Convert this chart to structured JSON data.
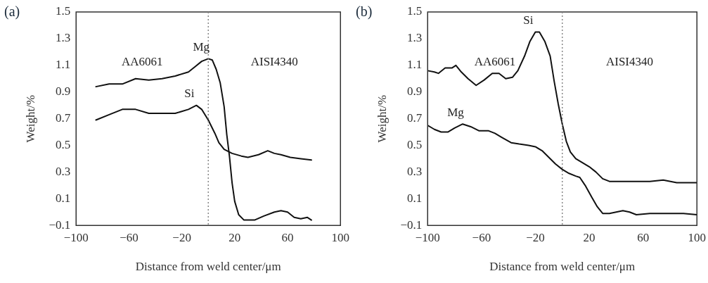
{
  "chart_data": [
    {
      "type": "line",
      "title": "(a)",
      "xlabel": "Distance from weld center/μm",
      "ylabel": "Weight/%",
      "xlim": [
        -100,
        100
      ],
      "xticks": [
        -100,
        -60,
        -20,
        20,
        60,
        100
      ],
      "ylim": [
        -0.1,
        1.5
      ],
      "yticks": [
        -0.1,
        0.1,
        0.3,
        0.5,
        0.7,
        0.9,
        1.1,
        1.3,
        1.5
      ],
      "marker": "none",
      "line_style": "solid",
      "series": [
        {
          "name": "Mg",
          "color": "#111111",
          "x": [
            -85,
            -75,
            -65,
            -55,
            -45,
            -35,
            -25,
            -15,
            -10,
            -5,
            0,
            3,
            6,
            9,
            12,
            14,
            16,
            18,
            20,
            23,
            27,
            35,
            42,
            50,
            55,
            60,
            65,
            70,
            75,
            78
          ],
          "values": [
            0.94,
            0.96,
            0.96,
            1.0,
            0.99,
            1.0,
            1.02,
            1.05,
            1.09,
            1.13,
            1.15,
            1.14,
            1.07,
            0.97,
            0.79,
            0.58,
            0.42,
            0.22,
            0.08,
            -0.02,
            -0.06,
            -0.06,
            -0.03,
            0.0,
            0.01,
            0.0,
            -0.04,
            -0.05,
            -0.04,
            -0.06
          ]
        },
        {
          "name": "Si",
          "color": "#111111",
          "x": [
            -85,
            -75,
            -65,
            -55,
            -45,
            -35,
            -25,
            -15,
            -9,
            -5,
            0,
            5,
            8,
            12,
            18,
            25,
            30,
            38,
            45,
            50,
            55,
            62,
            70,
            78
          ],
          "values": [
            0.69,
            0.73,
            0.77,
            0.77,
            0.74,
            0.74,
            0.74,
            0.77,
            0.8,
            0.77,
            0.69,
            0.59,
            0.52,
            0.47,
            0.44,
            0.42,
            0.41,
            0.43,
            0.46,
            0.44,
            0.43,
            0.41,
            0.4,
            0.39
          ]
        }
      ],
      "ref_lines": [
        {
          "axis": "x",
          "value": 0,
          "line_style": "dotted",
          "color": "#888888"
        }
      ],
      "annotations": [
        "AA6061",
        "AISI4340"
      ]
    },
    {
      "type": "line",
      "title": "(b)",
      "xlabel": "Distance from weld center/μm",
      "ylabel": "Weight/%",
      "xlim": [
        -100,
        100
      ],
      "xticks": [
        -100,
        -60,
        -20,
        20,
        60,
        100
      ],
      "ylim": [
        -0.1,
        1.5
      ],
      "yticks": [
        -0.1,
        0.1,
        0.3,
        0.5,
        0.7,
        0.9,
        1.1,
        1.3,
        1.5
      ],
      "marker": "none",
      "line_style": "solid",
      "series": [
        {
          "name": "Si",
          "color": "#111111",
          "x": [
            -100,
            -95,
            -92,
            -87,
            -82,
            -79,
            -75,
            -70,
            -64,
            -58,
            -52,
            -47,
            -42,
            -37,
            -33,
            -28,
            -24,
            -20,
            -17,
            -13,
            -9,
            -6,
            -3,
            0,
            3,
            6,
            10,
            15,
            20,
            25,
            30,
            35,
            45,
            55,
            65,
            75,
            85,
            100
          ],
          "values": [
            1.06,
            1.05,
            1.04,
            1.08,
            1.08,
            1.1,
            1.05,
            1.0,
            0.95,
            0.99,
            1.04,
            1.04,
            1.0,
            1.01,
            1.06,
            1.17,
            1.28,
            1.35,
            1.35,
            1.28,
            1.17,
            0.98,
            0.81,
            0.66,
            0.53,
            0.45,
            0.4,
            0.37,
            0.34,
            0.3,
            0.25,
            0.23,
            0.23,
            0.23,
            0.23,
            0.24,
            0.22,
            0.22
          ]
        },
        {
          "name": "Mg",
          "color": "#111111",
          "x": [
            -100,
            -95,
            -90,
            -85,
            -80,
            -74,
            -68,
            -62,
            -55,
            -50,
            -45,
            -38,
            -32,
            -25,
            -20,
            -15,
            -10,
            -5,
            0,
            5,
            10,
            13,
            17,
            22,
            26,
            30,
            35,
            40,
            45,
            50,
            55,
            65,
            70,
            80,
            90,
            100
          ],
          "values": [
            0.65,
            0.62,
            0.6,
            0.6,
            0.63,
            0.66,
            0.64,
            0.61,
            0.61,
            0.59,
            0.56,
            0.52,
            0.51,
            0.5,
            0.49,
            0.46,
            0.41,
            0.36,
            0.32,
            0.29,
            0.27,
            0.26,
            0.2,
            0.11,
            0.04,
            -0.01,
            -0.01,
            0.0,
            0.01,
            0.0,
            -0.02,
            -0.01,
            -0.01,
            -0.01,
            -0.01,
            -0.02
          ]
        }
      ],
      "ref_lines": [
        {
          "axis": "x",
          "value": 0,
          "line_style": "dotted",
          "color": "#888888"
        }
      ],
      "annotations": [
        "AA6061",
        "AISI4340"
      ]
    }
  ]
}
